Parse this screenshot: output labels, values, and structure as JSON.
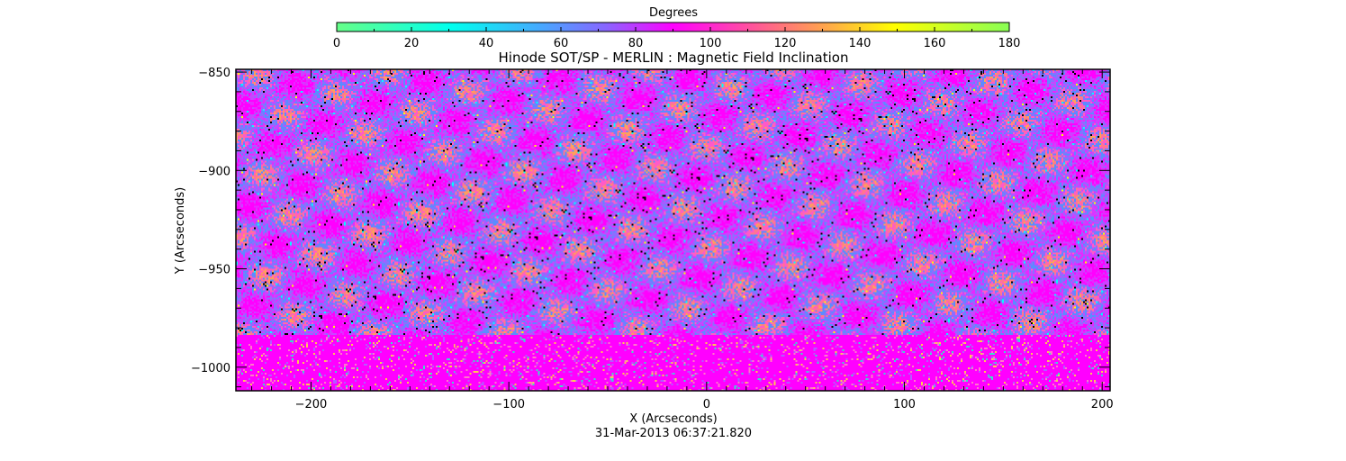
{
  "chart_data": {
    "type": "heatmap",
    "title": "Hinode SOT/SP - MERLIN : Magnetic Field Inclination",
    "xlabel": "X (Arcseconds)",
    "ylabel": "Y (Arcseconds)",
    "footer": "31-Mar-2013 06:37:21.820",
    "xlim": [
      -238,
      204
    ],
    "ylim": [
      -1012,
      -848.6
    ],
    "xticks": [
      -200,
      -100,
      0,
      100,
      200
    ],
    "yticks": [
      -850,
      -900,
      -950,
      -1000
    ],
    "colorbar": {
      "label": "Degrees",
      "range": [
        0,
        180
      ],
      "ticks": [
        0,
        20,
        40,
        60,
        80,
        100,
        120,
        140,
        160,
        180
      ],
      "colors": [
        "#66ff66",
        "#00ffff",
        "#4499ff",
        "#ff00ff",
        "#ff6688",
        "#ffaa44",
        "#ffff00",
        "#88ff44"
      ]
    },
    "dominant_value_deg": 90,
    "limb_transition_y": -983
  }
}
